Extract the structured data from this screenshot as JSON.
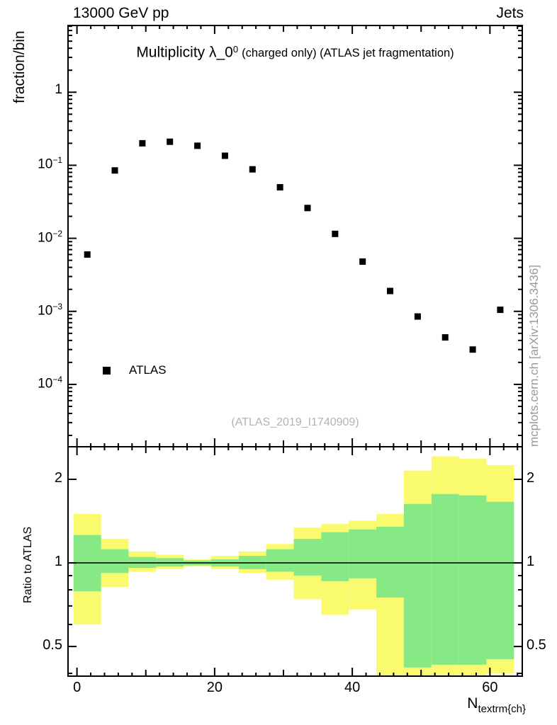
{
  "header": {
    "left": "13000 GeV pp",
    "right": "Jets"
  },
  "main_panel": {
    "ylabel": "fraction/bin",
    "title_main": "Multiplicity λ_0",
    "title_sup": "0",
    "title_rest": "(charged only) (ATLAS jet fragmentation)",
    "legend": {
      "label": "ATLAS"
    },
    "watermark": "(ATLAS_2019_I1740909)"
  },
  "ratio_panel": {
    "ylabel": "Ratio to ATLAS"
  },
  "side_text": "mcplots.cern.ch [arXiv:1306.3436]",
  "xaxis": {
    "label_main": "N",
    "label_sub": "textrm{ch}"
  },
  "colors": {
    "band_outer": "#fafa6e",
    "band_inner": "#86e986",
    "marker": "#000000",
    "frame": "#000000",
    "watermark": "#b3b3b3",
    "side_text": "#999999"
  },
  "chart_data": [
    {
      "type": "scatter",
      "title": "Multiplicity λ_0^0 (charged only) (ATLAS jet fragmentation)",
      "ylabel": "fraction/bin",
      "yscale": "log",
      "xlim": [
        -1.3,
        64.7
      ],
      "ylim": [
        1.4e-05,
        8.2
      ],
      "yticks": [
        1,
        0.1,
        0.01,
        0.001,
        0.0001
      ],
      "grid": false,
      "legend_position": "lower-left",
      "series": [
        {
          "name": "ATLAS",
          "marker": "square",
          "color": "#000000",
          "x": [
            1.5,
            5.5,
            9.5,
            13.5,
            17.5,
            21.5,
            25.5,
            29.5,
            33.5,
            37.5,
            41.5,
            45.5,
            49.5,
            53.5,
            57.5,
            61.5
          ],
          "y": [
            0.006,
            0.085,
            0.2,
            0.21,
            0.185,
            0.135,
            0.088,
            0.05,
            0.026,
            0.0115,
            0.0048,
            0.0019,
            0.00085,
            0.00044,
            0.0003,
            0.00105
          ]
        }
      ]
    },
    {
      "type": "band-ratio",
      "ylabel": "Ratio to ATLAS",
      "xlabel": "N_ch",
      "yscale": "log",
      "xlim": [
        -1.3,
        64.7
      ],
      "ylim": [
        0.391,
        2.62
      ],
      "yticks": [
        0.5,
        1,
        2
      ],
      "yticks_minor": [
        0.4,
        0.6,
        0.7,
        0.8,
        0.9
      ],
      "xticks": [
        0,
        20,
        40,
        60
      ],
      "reference_line": 1.0,
      "bin_edges": [
        -0.5,
        3.5,
        7.5,
        11.5,
        15.5,
        19.5,
        23.5,
        27.5,
        31.5,
        35.5,
        39.5,
        43.5,
        47.5,
        51.5,
        55.5,
        59.5,
        63.5
      ],
      "bands": {
        "outer": {
          "color": "#fafa6e",
          "lo": [
            0.6,
            0.82,
            0.93,
            0.95,
            0.97,
            0.95,
            0.92,
            0.87,
            0.74,
            0.65,
            0.68,
            0.38,
            0.38,
            0.38,
            0.38,
            0.4
          ],
          "hi": [
            1.5,
            1.22,
            1.1,
            1.07,
            1.03,
            1.06,
            1.1,
            1.17,
            1.34,
            1.38,
            1.42,
            1.5,
            2.15,
            2.42,
            2.37,
            2.25
          ]
        },
        "inner": {
          "color": "#86e986",
          "lo": [
            0.79,
            0.92,
            0.96,
            0.97,
            0.98,
            0.97,
            0.95,
            0.93,
            0.9,
            0.86,
            0.88,
            0.75,
            0.42,
            0.43,
            0.43,
            0.45
          ],
          "hi": [
            1.26,
            1.12,
            1.05,
            1.04,
            1.02,
            1.03,
            1.06,
            1.12,
            1.22,
            1.29,
            1.32,
            1.35,
            1.63,
            1.77,
            1.75,
            1.66
          ]
        }
      }
    }
  ]
}
